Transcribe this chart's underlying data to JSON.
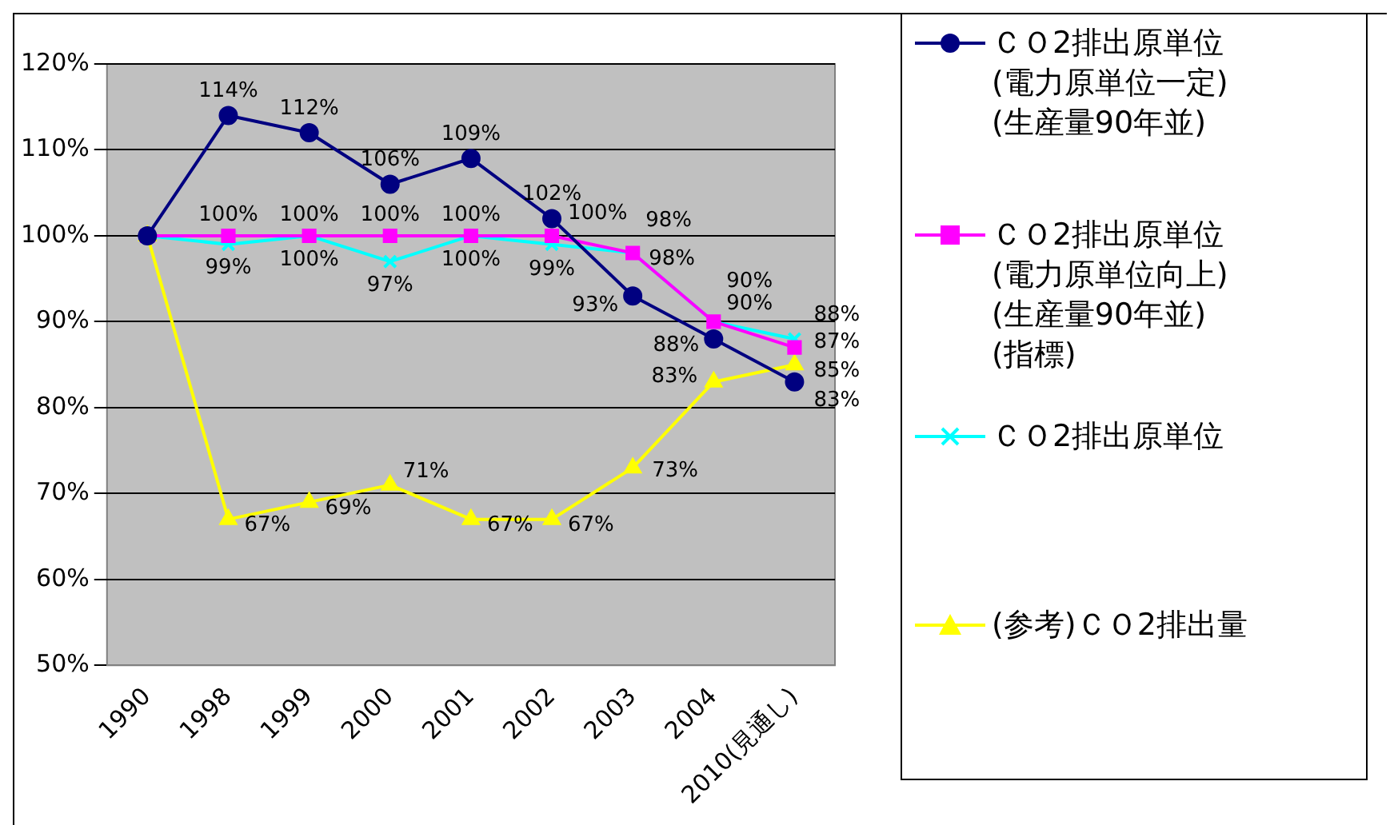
{
  "chart_data": {
    "type": "line",
    "categories": [
      "1990",
      "1998",
      "1999",
      "2000",
      "2001",
      "2002",
      "2003",
      "2004",
      "2010(見通し)"
    ],
    "ylim": [
      50,
      120
    ],
    "yticks": [
      {
        "value": 50,
        "label": "50%"
      },
      {
        "value": 60,
        "label": "60%"
      },
      {
        "value": 70,
        "label": "70%"
      },
      {
        "value": 80,
        "label": "80%"
      },
      {
        "value": 90,
        "label": "90%"
      },
      {
        "value": 100,
        "label": "100%"
      },
      {
        "value": 110,
        "label": "110%"
      },
      {
        "value": 120,
        "label": "120%"
      }
    ],
    "grid": "y",
    "legend": "right",
    "series": [
      {
        "name": "ＣＯ2排出原単位(電力原単位一定)(生産量90年並)",
        "color": "#000080",
        "marker": "circle",
        "values": [
          100,
          114,
          112,
          106,
          109,
          102,
          93,
          88,
          83
        ],
        "value_labels": [
          null,
          "114%",
          "112%",
          "106%",
          "109%",
          "102%",
          "93%",
          "88%",
          "83%"
        ]
      },
      {
        "name": "ＣＯ2排出原単位(電力原単位向上)(生産量90年並)(指標)",
        "color": "#ff00ff",
        "marker": "square",
        "values": [
          100,
          100,
          100,
          100,
          100,
          100,
          98,
          90,
          87
        ],
        "value_labels": [
          null,
          "100%",
          "100%",
          "100%",
          "100%",
          "100%",
          "98%",
          "90%",
          "87%"
        ]
      },
      {
        "name": "ＣＯ2排出原単位",
        "color": "#00ffff",
        "marker": "cross",
        "values": [
          100,
          99,
          100,
          97,
          100,
          99,
          98,
          90,
          88
        ],
        "value_labels": [
          null,
          "99%",
          "100%",
          "97%",
          "100%",
          "99%",
          "98%",
          "90%",
          "88%"
        ]
      },
      {
        "name": "(参考)ＣＯ2排出量",
        "color": "#ffff00",
        "marker": "triangle",
        "values": [
          100,
          67,
          69,
          71,
          67,
          67,
          73,
          83,
          85
        ],
        "value_labels": [
          null,
          "67%",
          "69%",
          "71%",
          "67%",
          "67%",
          "73%",
          "83%",
          "85%"
        ]
      }
    ]
  }
}
